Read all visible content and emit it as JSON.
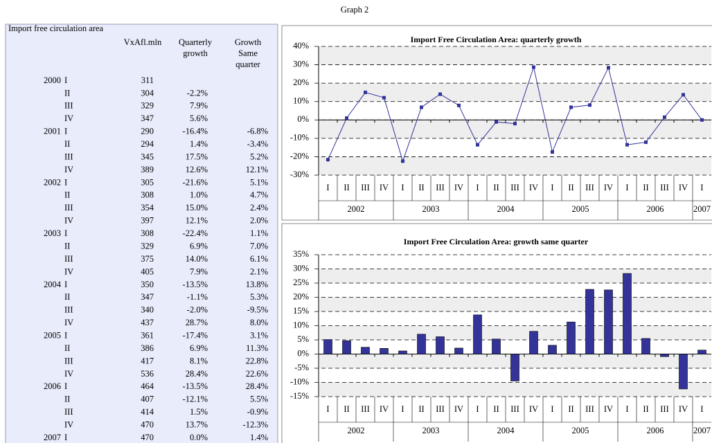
{
  "page_title": "Graph 2",
  "table": {
    "title": "Import free circulation area",
    "headers": [
      [
        "VxAfl.mln"
      ],
      [
        "Quarterly",
        "growth"
      ],
      [
        "Growth",
        "Same",
        "quarter"
      ]
    ],
    "rows": [
      [
        "2000",
        "I",
        "311",
        null,
        null
      ],
      [
        null,
        "II",
        "304",
        "-2.2%",
        null
      ],
      [
        null,
        "III",
        "329",
        "7.9%",
        null
      ],
      [
        null,
        "IV",
        "347",
        "5.6%",
        null
      ],
      [
        "2001",
        "I",
        "290",
        "-16.4%",
        "-6.8%"
      ],
      [
        null,
        "II",
        "294",
        "1.4%",
        "-3.4%"
      ],
      [
        null,
        "III",
        "345",
        "17.5%",
        "5.2%"
      ],
      [
        null,
        "IV",
        "389",
        "12.6%",
        "12.1%"
      ],
      [
        "2002",
        "I",
        "305",
        "-21.6%",
        "5.1%"
      ],
      [
        null,
        "II",
        "308",
        "1.0%",
        "4.7%"
      ],
      [
        null,
        "III",
        "354",
        "15.0%",
        "2.4%"
      ],
      [
        null,
        "IV",
        "397",
        "12.1%",
        "2.0%"
      ],
      [
        "2003",
        "I",
        "308",
        "-22.4%",
        "1.1%"
      ],
      [
        null,
        "II",
        "329",
        "6.9%",
        "7.0%"
      ],
      [
        null,
        "III",
        "375",
        "14.0%",
        "6.1%"
      ],
      [
        null,
        "IV",
        "405",
        "7.9%",
        "2.1%"
      ],
      [
        "2004",
        "I",
        "350",
        "-13.5%",
        "13.8%"
      ],
      [
        null,
        "II",
        "347",
        "-1.1%",
        "5.3%"
      ],
      [
        null,
        "III",
        "340",
        "-2.0%",
        "-9.5%"
      ],
      [
        null,
        "IV",
        "437",
        "28.7%",
        "8.0%"
      ],
      [
        "2005",
        "I",
        "361",
        "-17.4%",
        "3.1%"
      ],
      [
        null,
        "II",
        "386",
        "6.9%",
        "11.3%"
      ],
      [
        null,
        "III",
        "417",
        "8.1%",
        "22.8%"
      ],
      [
        null,
        "IV",
        "536",
        "28.4%",
        "22.6%"
      ],
      [
        "2006",
        "I",
        "464",
        "-13.5%",
        "28.4%"
      ],
      [
        null,
        "II",
        "407",
        "-12.1%",
        "5.5%"
      ],
      [
        null,
        "III",
        "414",
        "1.5%",
        "-0.9%"
      ],
      [
        null,
        "IV",
        "470",
        "13.7%",
        "-12.3%"
      ],
      [
        "2007",
        "I",
        "470",
        "0.0%",
        "1.4%"
      ]
    ]
  },
  "chart_data": [
    {
      "type": "line",
      "title": "Import Free Circulation Area: quarterly growth",
      "categories": [
        "I",
        "II",
        "III",
        "IV",
        "I",
        "II",
        "III",
        "IV",
        "I",
        "II",
        "III",
        "IV",
        "I",
        "II",
        "III",
        "IV",
        "I",
        "II",
        "III",
        "IV",
        "I"
      ],
      "category_groups": [
        "2002",
        "2003",
        "2004",
        "2005",
        "2006",
        "2007"
      ],
      "values": [
        -21.6,
        1.0,
        15.0,
        12.1,
        -22.4,
        6.9,
        14.0,
        7.9,
        -13.5,
        -1.1,
        -2.0,
        28.7,
        -17.4,
        6.9,
        8.1,
        28.4,
        -13.5,
        -12.1,
        1.5,
        13.7,
        0.0
      ],
      "color": "#333399",
      "ylim": [
        -30,
        40
      ],
      "yticks": [
        {
          "value": -30,
          "label": "-30%"
        },
        {
          "value": -20,
          "label": "-20%"
        },
        {
          "value": -10,
          "label": "-10%"
        },
        {
          "value": 0,
          "label": "0%"
        },
        {
          "value": 10,
          "label": "10%"
        },
        {
          "value": 20,
          "label": "20%"
        },
        {
          "value": 30,
          "label": "30%"
        },
        {
          "value": 40,
          "label": "40%"
        }
      ],
      "grid": true
    },
    {
      "type": "bar",
      "title": "Import Free Circulation Area: growth same quarter",
      "categories": [
        "I",
        "II",
        "III",
        "IV",
        "I",
        "II",
        "III",
        "IV",
        "I",
        "II",
        "III",
        "IV",
        "I",
        "II",
        "III",
        "IV",
        "I",
        "II",
        "III",
        "IV",
        "I"
      ],
      "category_groups": [
        "2002",
        "2003",
        "2004",
        "2005",
        "2006",
        "2007"
      ],
      "values": [
        5.1,
        4.7,
        2.4,
        2.0,
        1.1,
        7.0,
        6.1,
        2.1,
        13.8,
        5.3,
        -9.5,
        8.0,
        3.1,
        11.3,
        22.8,
        22.6,
        28.4,
        5.5,
        -0.9,
        -12.3,
        1.4
      ],
      "color": "#333399",
      "ylim": [
        -15,
        35
      ],
      "yticks": [
        {
          "value": -15,
          "label": "-15%"
        },
        {
          "value": -10,
          "label": "-10%"
        },
        {
          "value": -5,
          "label": "-5%"
        },
        {
          "value": 0,
          "label": "0%"
        },
        {
          "value": 5,
          "label": "5%"
        },
        {
          "value": 10,
          "label": "10%"
        },
        {
          "value": 15,
          "label": "15%"
        },
        {
          "value": 20,
          "label": "20%"
        },
        {
          "value": 25,
          "label": "25%"
        },
        {
          "value": 30,
          "label": "30%"
        },
        {
          "value": 35,
          "label": "35%"
        }
      ],
      "grid": true
    }
  ]
}
